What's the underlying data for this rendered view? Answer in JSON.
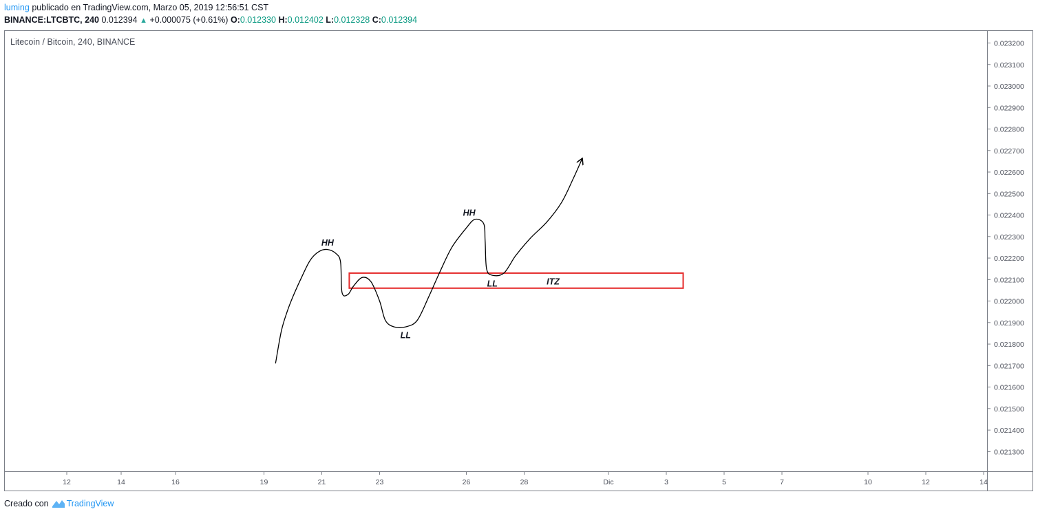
{
  "header": {
    "user": "luming",
    "published": "publicado en TradingView.com, Marzo 05, 2019 12:56:51 CST",
    "symbol": "BINANCE:LTCBTC, 240",
    "price": "0.012394",
    "change": "+0.000075 (+0.61%)",
    "open_label": "O:",
    "open": "0.012330",
    "high_label": "H:",
    "high": "0.012402",
    "low_label": "L:",
    "low": "0.012328",
    "close_label": "C:",
    "close": "0.012394"
  },
  "footer": {
    "created_with": "Creado con",
    "brand": "TradingView"
  },
  "colors": {
    "accent": "#2196f3",
    "up": "#26a69a",
    "zone": "#e52b2b",
    "line": "#000000"
  },
  "chart_data": {
    "type": "line",
    "title": "Litecoin / Bitcoin, 240, BINANCE",
    "xlabel": "",
    "ylabel": "",
    "ylim": [
      0.02125,
      0.02324
    ],
    "y_ticks": [
      "0.023200",
      "0.023100",
      "0.023000",
      "0.022900",
      "0.022800",
      "0.022700",
      "0.022600",
      "0.022500",
      "0.022400",
      "0.022300",
      "0.022200",
      "0.022100",
      "0.022000",
      "0.021900",
      "0.021800",
      "0.021700",
      "0.021600",
      "0.021500",
      "0.021400",
      "0.021300"
    ],
    "x_ticks": [
      "12",
      "14",
      "16",
      "19",
      "21",
      "23",
      "26",
      "28",
      "Dic",
      "3",
      "5",
      "7",
      "10",
      "12",
      "14"
    ],
    "drawn_path": [
      [
        19.4,
        0.02171
      ],
      [
        19.6,
        0.02186
      ],
      [
        19.8,
        0.02195
      ],
      [
        20.0,
        0.02202
      ],
      [
        20.3,
        0.02211
      ],
      [
        20.6,
        0.02219
      ],
      [
        20.9,
        0.02223
      ],
      [
        21.2,
        0.02224
      ],
      [
        21.5,
        0.02222
      ],
      [
        21.65,
        0.02218
      ],
      [
        21.7,
        0.02204
      ],
      [
        21.9,
        0.02203
      ],
      [
        22.1,
        0.02207
      ],
      [
        22.4,
        0.02211
      ],
      [
        22.7,
        0.02209
      ],
      [
        23.0,
        0.022
      ],
      [
        23.2,
        0.02191
      ],
      [
        23.5,
        0.02188
      ],
      [
        23.9,
        0.02188
      ],
      [
        24.3,
        0.02191
      ],
      [
        24.7,
        0.02202
      ],
      [
        25.1,
        0.02214
      ],
      [
        25.5,
        0.02225
      ],
      [
        26.0,
        0.02234
      ],
      [
        26.3,
        0.02238
      ],
      [
        26.6,
        0.02236
      ],
      [
        26.65,
        0.02228
      ],
      [
        26.7,
        0.02215
      ],
      [
        26.9,
        0.02212
      ],
      [
        27.3,
        0.02213
      ],
      [
        27.7,
        0.02221
      ],
      [
        28.2,
        0.02229
      ],
      [
        28.8,
        0.02237
      ],
      [
        29.3,
        0.02246
      ],
      [
        29.7,
        0.02257
      ],
      [
        30.0,
        0.02266
      ]
    ],
    "annotations": [
      {
        "text": "HH",
        "x": 21.2,
        "y": 0.02227
      },
      {
        "text": "LL",
        "x": 23.9,
        "y": 0.02184
      },
      {
        "text": "HH",
        "x": 26.1,
        "y": 0.02241
      },
      {
        "text": "LL",
        "x": 26.9,
        "y": 0.02208
      },
      {
        "text": "ITZ",
        "x": 29.0,
        "y": 0.02209
      }
    ],
    "zone": {
      "x0": 21.95,
      "x1": 33.5,
      "y0": 0.02206,
      "y1": 0.02213
    },
    "grid": false
  }
}
